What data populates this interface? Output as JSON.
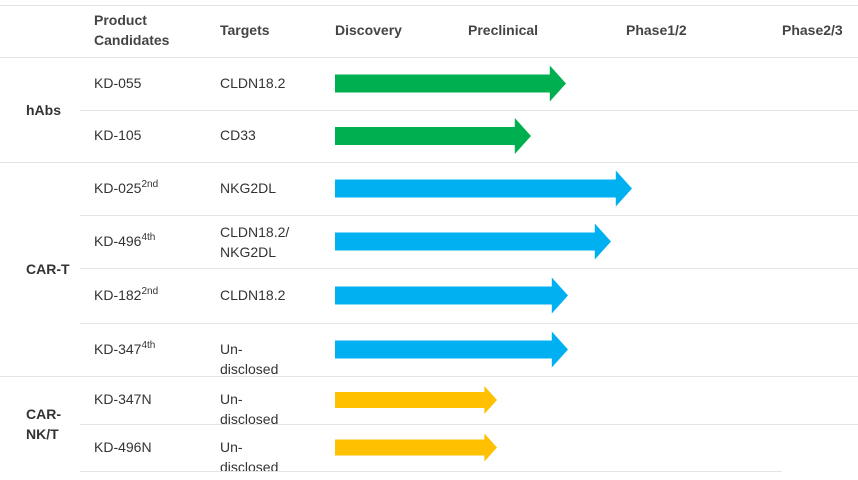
{
  "header": {
    "group": "",
    "product": "Product Candidates",
    "targets": "Targets",
    "stages": [
      "Discovery",
      "Preclinical",
      "Phase1/2",
      "Phase2/3"
    ]
  },
  "groups": [
    {
      "label": "hAbs",
      "rows": [
        {
          "product": "KD-055",
          "sup": null,
          "targets": "CLDN18.2"
        },
        {
          "product": "KD-105",
          "sup": null,
          "targets": "CD33"
        }
      ]
    },
    {
      "label": "CAR-T",
      "rows": [
        {
          "product": "KD-025",
          "sup": "2nd",
          "targets": "NKG2DL"
        },
        {
          "product": "KD-496",
          "sup": "4th",
          "targets": "CLDN18.2/ NKG2DL"
        },
        {
          "product": "KD-182",
          "sup": "2nd",
          "targets": "CLDN18.2"
        },
        {
          "product": "KD-347",
          "sup": "4th",
          "targets": "Un-disclosed"
        }
      ]
    },
    {
      "label": "CAR-NK/T",
      "rows": [
        {
          "product": "KD-347N",
          "sup": null,
          "targets": "Un-disclosed"
        },
        {
          "product": "KD-496N",
          "sup": null,
          "targets": "Un-disclosed"
        }
      ]
    }
  ]
}
